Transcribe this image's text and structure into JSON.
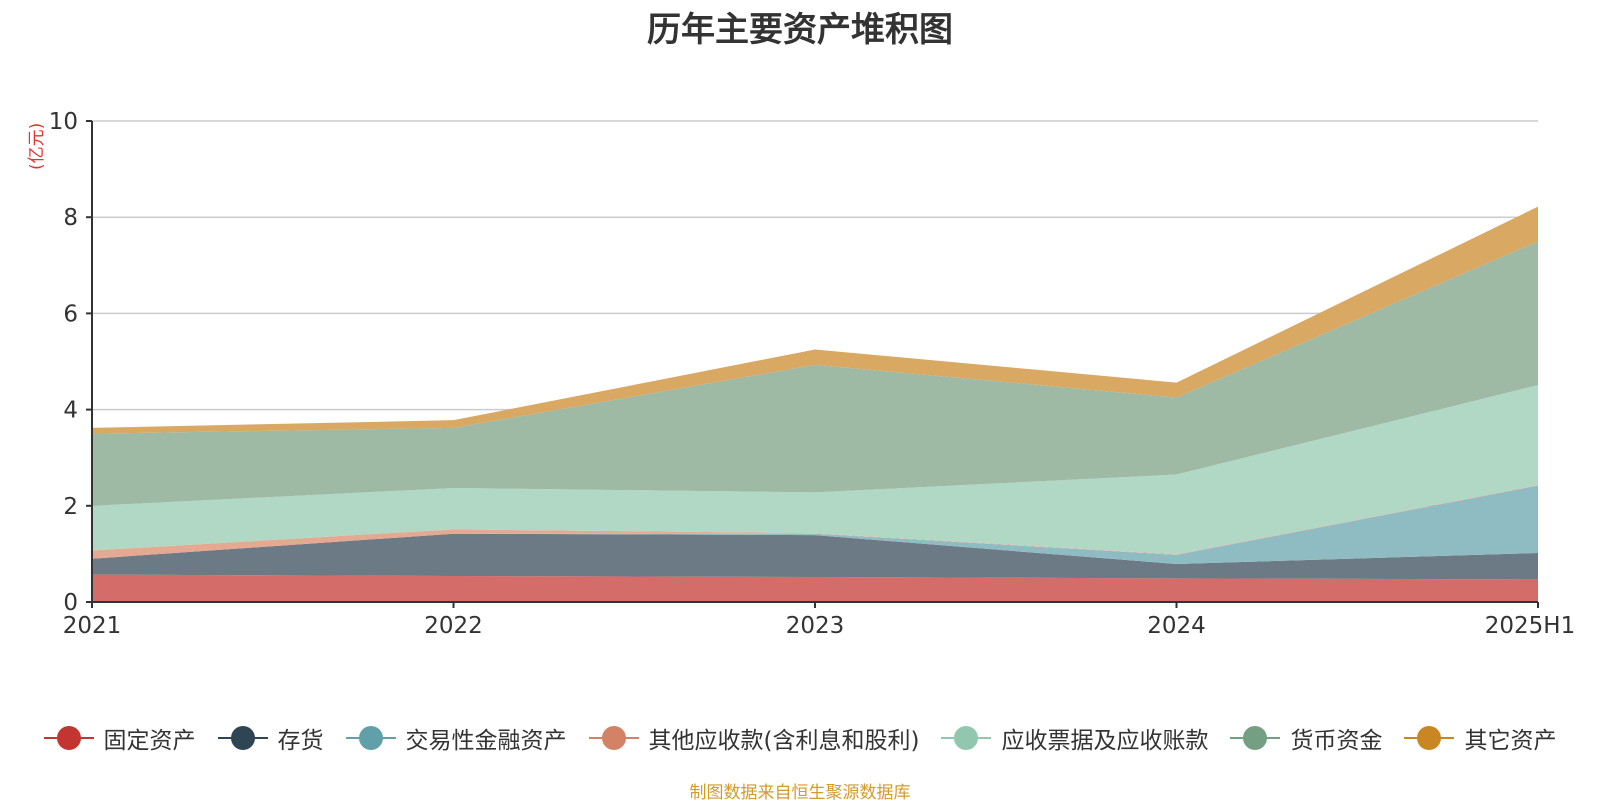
{
  "chart_data": {
    "type": "area",
    "stacked": true,
    "title": "历年主要资产堆积图",
    "unit_label": "(亿元)",
    "x": [
      "2021",
      "2022",
      "2023",
      "2024",
      "2025H1"
    ],
    "ylim": [
      0,
      10
    ],
    "yticks": [
      0,
      2,
      4,
      6,
      8,
      10
    ],
    "grid": true,
    "legend_position": "bottom",
    "series": [
      {
        "name": "固定资产",
        "color": "#c23531",
        "fill": "#d46c6a",
        "values": [
          0.57,
          0.54,
          0.52,
          0.49,
          0.47
        ]
      },
      {
        "name": "存货",
        "color": "#2f4554",
        "fill": "#6c7a86",
        "values": [
          0.33,
          0.88,
          0.87,
          0.3,
          0.55
        ]
      },
      {
        "name": "交易性金融资产",
        "color": "#61a0a8",
        "fill": "#8fbbc2",
        "values": [
          0,
          0,
          0.03,
          0.19,
          1.4
        ]
      },
      {
        "name": "其他应收款(含利息和股利)",
        "color": "#d48265",
        "fill": "#e5a891",
        "values": [
          0.17,
          0.09,
          0.01,
          0.01,
          0.01
        ]
      },
      {
        "name": "应收票据及应收账款",
        "color": "#91c7ae",
        "fill": "#b1d7c5",
        "values": [
          0.93,
          0.86,
          0.85,
          1.66,
          2.08
        ]
      },
      {
        "name": "货币资金",
        "color": "#749f83",
        "fill": "#9eb9a4",
        "values": [
          1.5,
          1.25,
          2.65,
          1.6,
          2.99
        ]
      },
      {
        "name": "其它资产",
        "color": "#ca8622",
        "fill": "#d9a863",
        "values": [
          0.12,
          0.16,
          0.32,
          0.31,
          0.72
        ]
      }
    ]
  },
  "source_note": "制图数据来自恒生聚源数据库"
}
